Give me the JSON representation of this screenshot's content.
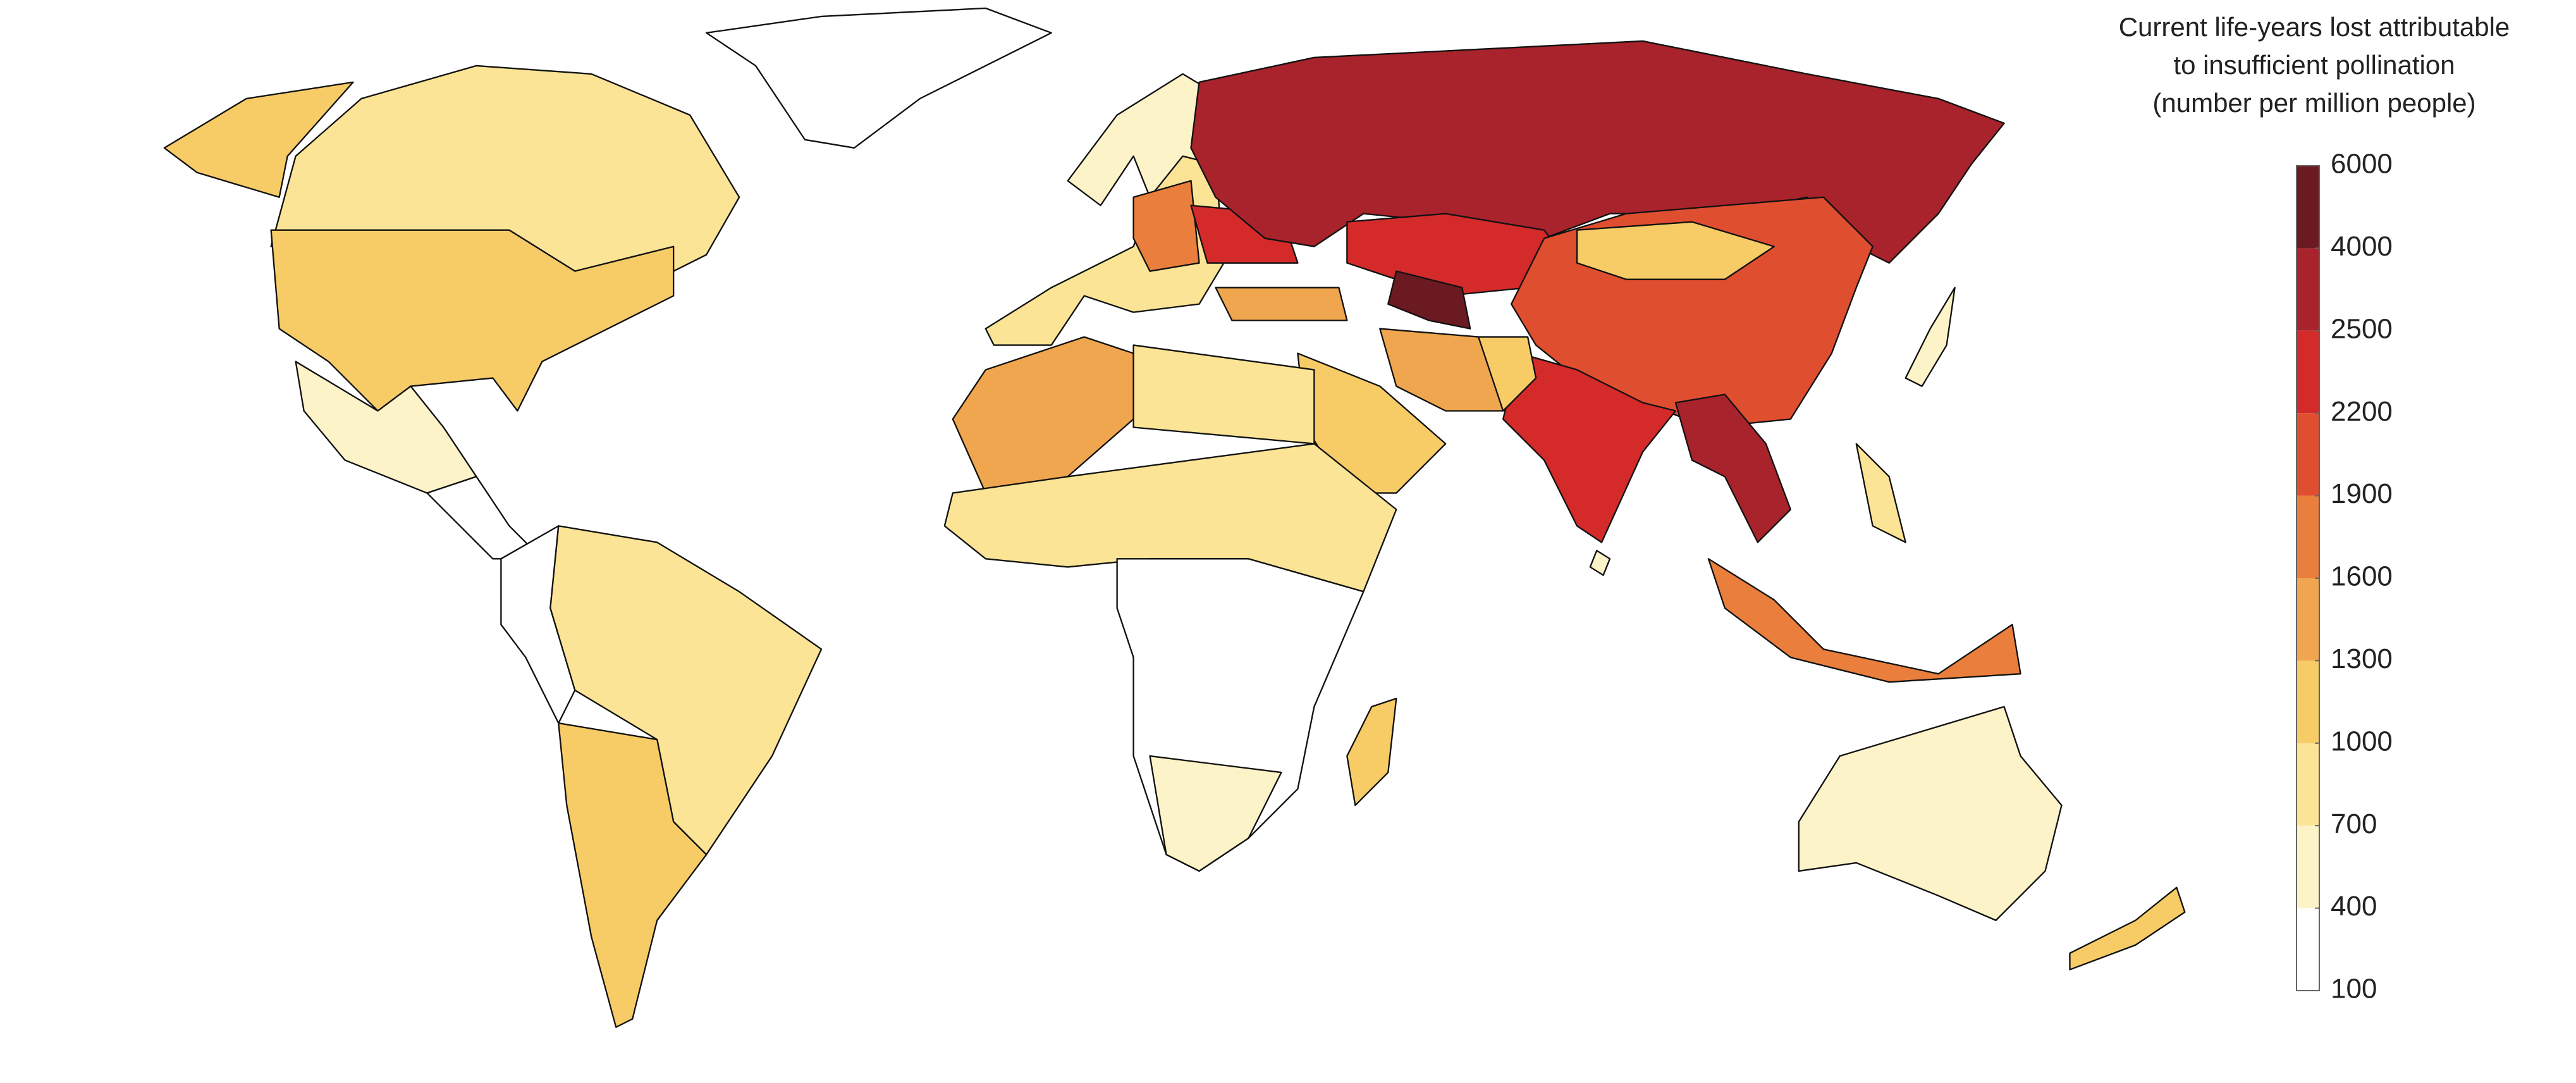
{
  "chart_data": {
    "type": "choropleth",
    "legend_title": [
      "Current life-years lost attributable",
      "to insufficient pollination",
      "(number per million people)"
    ],
    "ticks": [
      100,
      400,
      700,
      1000,
      1300,
      1600,
      1900,
      2200,
      2500,
      4000,
      6000
    ],
    "colors": [
      "#ffffff",
      "#fdf3c8",
      "#fbe495",
      "#f7cc67",
      "#f0a64e",
      "#ea7e3c",
      "#e04e30",
      "#d42a2a",
      "#a8232b",
      "#6b1a22"
    ]
  }
}
